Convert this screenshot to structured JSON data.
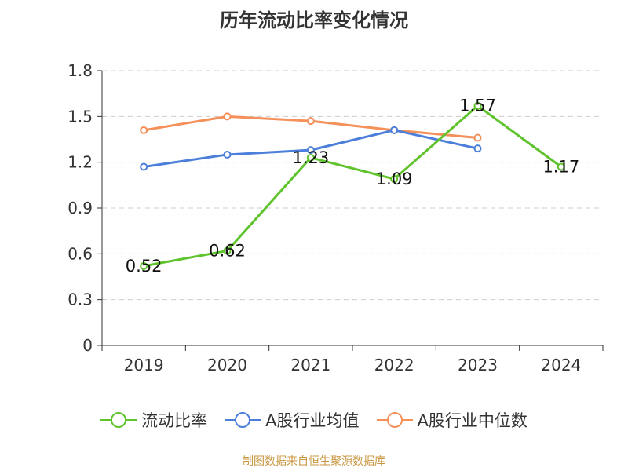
{
  "chart_data": {
    "type": "line",
    "title": "历年流动比率变化情况",
    "categories": [
      "2019",
      "2020",
      "2021",
      "2022",
      "2023",
      "2024"
    ],
    "ylim": [
      0,
      1.8
    ],
    "yticks": [
      "0",
      "0.3",
      "0.6",
      "0.9",
      "1.2",
      "1.5",
      "1.8"
    ],
    "grid": true,
    "legend_position": "bottom",
    "series": [
      {
        "name": "流动比率",
        "color": "#5fc32b",
        "values": [
          0.52,
          0.62,
          1.23,
          1.09,
          1.57,
          1.17
        ],
        "labels": [
          "0.52",
          "0.62",
          "1.23",
          "1.09",
          "1.57",
          "1.17"
        ]
      },
      {
        "name": "A股行业均值",
        "color": "#4b7fda",
        "values": [
          1.17,
          1.25,
          1.28,
          1.41,
          1.29,
          null
        ]
      },
      {
        "name": "A股行业中位数",
        "color": "#f5905a",
        "values": [
          1.41,
          1.5,
          1.47,
          1.41,
          1.36,
          null
        ]
      }
    ]
  },
  "source": "制图数据来自恒生聚源数据库"
}
